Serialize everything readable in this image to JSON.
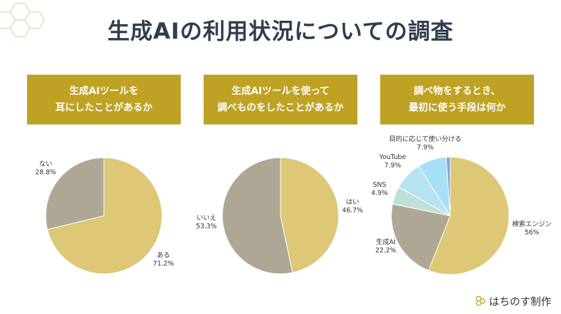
{
  "title": "生成AIの利用状況についての調査",
  "footer": {
    "brand": "はちのす制作",
    "logo_icon": "honeycomb-icon"
  },
  "colors": {
    "header_bg": "#bfa224",
    "gold": "#dcc877",
    "taupe": "#aea795",
    "sky": "#a5e0f7",
    "light_sky": "#b5e3f0",
    "pale_teal": "#bfe0d8",
    "blue": "#7ea6e0"
  },
  "chart_data": [
    {
      "type": "pie",
      "title_lines": [
        "生成AIツールを",
        "耳にしたことがあるか"
      ],
      "slices": [
        {
          "name": "ある",
          "value": 71.2,
          "label": "71.2%",
          "color": "#dcc877"
        },
        {
          "name": "ない",
          "value": 28.8,
          "label": "28.8%",
          "color": "#aea795"
        }
      ]
    },
    {
      "type": "pie",
      "title_lines": [
        "生成AIツールを使って",
        "調べものをしたことがあるか"
      ],
      "slices": [
        {
          "name": "はい",
          "value": 46.7,
          "label": "46.7%",
          "color": "#dcc877"
        },
        {
          "name": "いいえ",
          "value": 53.3,
          "label": "53.3%",
          "color": "#aea795"
        }
      ]
    },
    {
      "type": "pie",
      "title_lines": [
        "調べ物をするとき、",
        "最初に使う手段は何か"
      ],
      "slices": [
        {
          "name": "検索エンジン",
          "value": 56,
          "label": "56%",
          "color": "#dcc877"
        },
        {
          "name": "生成AI",
          "value": 22.2,
          "label": "22.2%",
          "color": "#aea795"
        },
        {
          "name": "SNS",
          "value": 4.9,
          "label": "4.9%",
          "color": "#bfe0d8"
        },
        {
          "name": "YouTube",
          "value": 7.9,
          "label": "7.9%",
          "color": "#b5e3f0"
        },
        {
          "name": "目的に応じて使い分ける",
          "value": 7.9,
          "label": "7.9%",
          "color": "#a5e0f7"
        },
        {
          "name": "",
          "value": 1.1,
          "label": "",
          "color": "#7ea6e0"
        }
      ]
    }
  ]
}
